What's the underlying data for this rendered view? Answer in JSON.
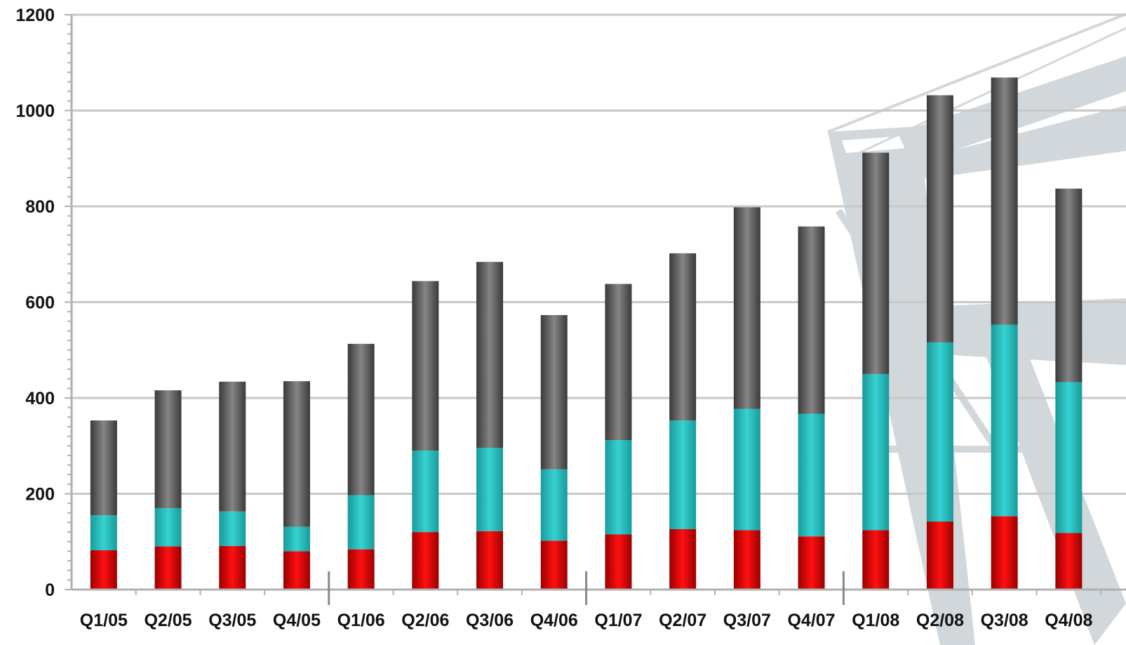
{
  "chart_data": {
    "type": "bar",
    "stacked": true,
    "title": "",
    "xlabel": "",
    "ylabel": "",
    "ylim": [
      0,
      1200
    ],
    "yticks": [
      "0",
      "200",
      "400",
      "600",
      "800",
      "1000",
      "1200"
    ],
    "grid": true,
    "legend": "none",
    "categories": [
      "Q1/05",
      "Q2/05",
      "Q3/05",
      "Q4/05",
      "Q1/06",
      "Q2/06",
      "Q3/06",
      "Q4/06",
      "Q1/07",
      "Q2/07",
      "Q3/07",
      "Q4/07",
      "Q1/08",
      "Q2/08",
      "Q3/08",
      "Q4/08"
    ],
    "series": [
      {
        "color": "#e00000",
        "values": [
          82,
          90,
          91,
          80,
          84,
          120,
          122,
          102,
          115,
          126,
          124,
          111,
          124,
          142,
          153,
          118
        ]
      },
      {
        "color": "#2ec4c4",
        "values": [
          73,
          80,
          72,
          51,
          113,
          170,
          174,
          149,
          197,
          227,
          253,
          256,
          326,
          374,
          400,
          315
        ]
      },
      {
        "color": "#6e6e6e",
        "values": [
          198,
          246,
          271,
          304,
          316,
          354,
          388,
          322,
          326,
          349,
          421,
          391,
          462,
          516,
          516,
          404
        ]
      }
    ],
    "colors": {
      "gridline": "#c8c8c8",
      "axis": "#b0b0b0",
      "watermark": "#cfd5d9"
    }
  }
}
